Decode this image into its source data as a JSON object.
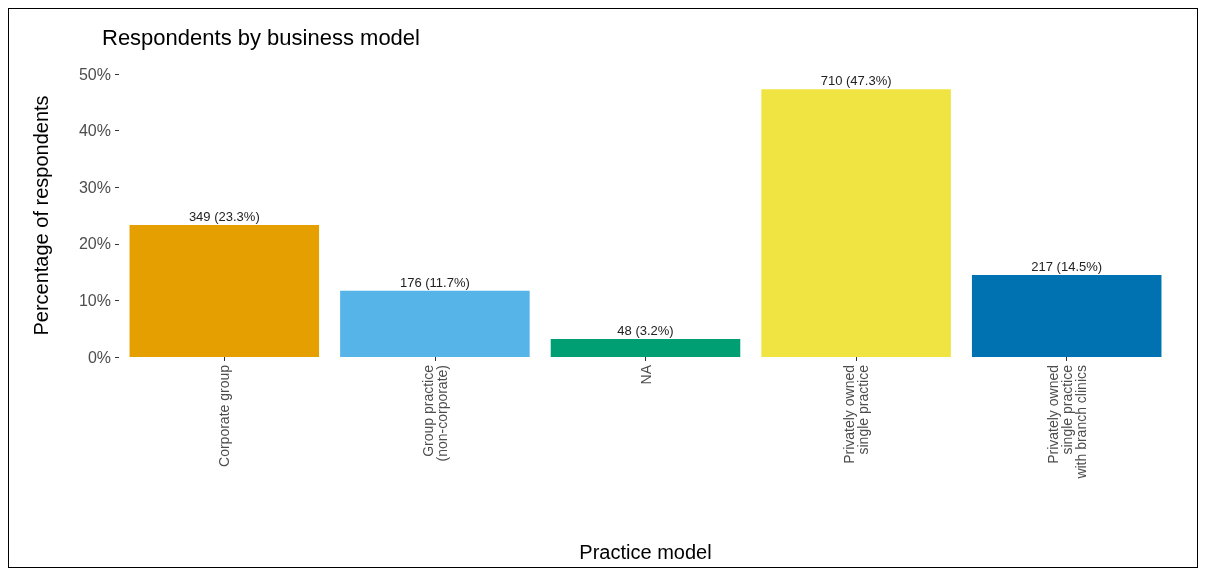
{
  "chart_data": {
    "type": "bar",
    "title": "Respondents by business model",
    "xlabel": "Practice model",
    "ylabel": "Percentage of respondents",
    "categories": [
      "Corporate group",
      "Group practice\n(non-corporate)",
      "NA",
      "Privately owned\nsingle practice",
      "Privately owned\nsingle practice\nwith branch clinics"
    ],
    "values": [
      23.3,
      11.7,
      3.2,
      47.3,
      14.5
    ],
    "colors": [
      "#e69f00",
      "#56b4e9",
      "#009e73",
      "#f0e442",
      "#0072b2"
    ],
    "value_labels": [
      "349 (23.3%)",
      "176 (11.7%)",
      "48 (3.2%)",
      "710 (47.3%)",
      "217 (14.5%)"
    ],
    "ylim": [
      0,
      50
    ],
    "yticks": [
      {
        "value": 0,
        "label": "0%"
      },
      {
        "value": 10,
        "label": "10%"
      },
      {
        "value": 20,
        "label": "20%"
      },
      {
        "value": 30,
        "label": "30%"
      },
      {
        "value": 40,
        "label": "40%"
      },
      {
        "value": 50,
        "label": "50%"
      }
    ],
    "grid": false
  }
}
